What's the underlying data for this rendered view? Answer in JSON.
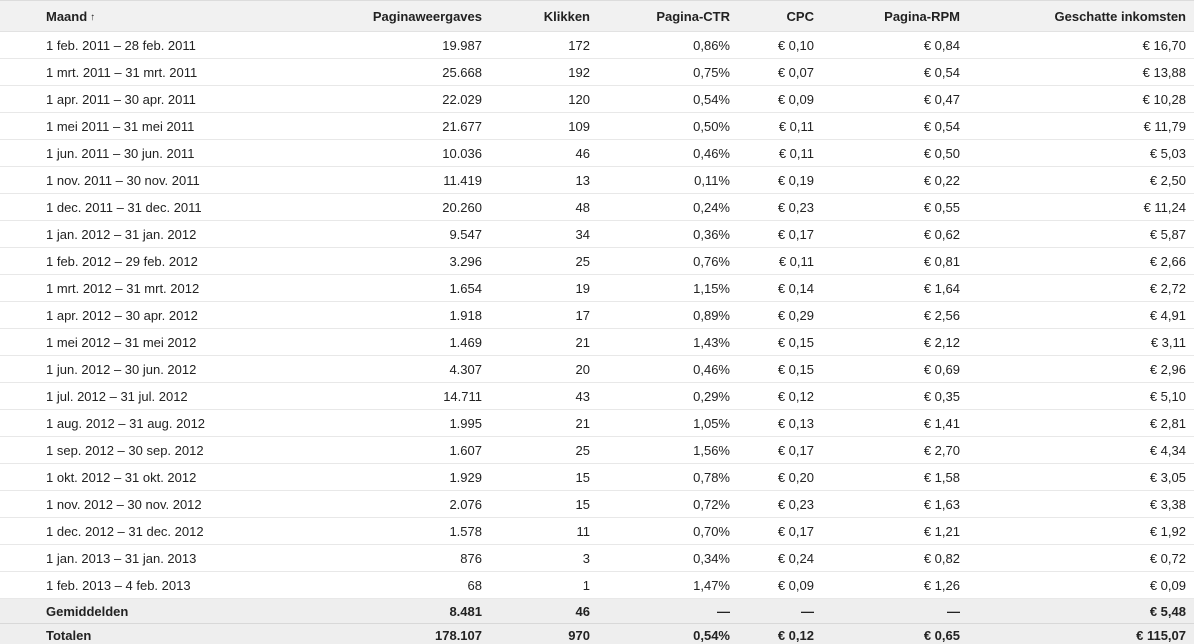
{
  "table": {
    "columns": {
      "month": "Maand",
      "sort_indicator": "↑",
      "pageviews": "Paginaweergaves",
      "clicks": "Klikken",
      "ctr": "Pagina-CTR",
      "cpc": "CPC",
      "rpm": "Pagina-RPM",
      "earnings": "Geschatte inkomsten"
    },
    "rows": [
      {
        "month": "1 feb. 2011 – 28 feb. 2011",
        "pageviews": "19.987",
        "clicks": "172",
        "ctr": "0,86%",
        "cpc": "€ 0,10",
        "rpm": "€ 0,84",
        "earnings": "€ 16,70"
      },
      {
        "month": "1 mrt. 2011 – 31 mrt. 2011",
        "pageviews": "25.668",
        "clicks": "192",
        "ctr": "0,75%",
        "cpc": "€ 0,07",
        "rpm": "€ 0,54",
        "earnings": "€ 13,88"
      },
      {
        "month": "1 apr. 2011 – 30 apr. 2011",
        "pageviews": "22.029",
        "clicks": "120",
        "ctr": "0,54%",
        "cpc": "€ 0,09",
        "rpm": "€ 0,47",
        "earnings": "€ 10,28"
      },
      {
        "month": "1 mei 2011 – 31 mei 2011",
        "pageviews": "21.677",
        "clicks": "109",
        "ctr": "0,50%",
        "cpc": "€ 0,11",
        "rpm": "€ 0,54",
        "earnings": "€ 11,79"
      },
      {
        "month": "1 jun. 2011 – 30 jun. 2011",
        "pageviews": "10.036",
        "clicks": "46",
        "ctr": "0,46%",
        "cpc": "€ 0,11",
        "rpm": "€ 0,50",
        "earnings": "€ 5,03"
      },
      {
        "month": "1 nov. 2011 – 30 nov. 2011",
        "pageviews": "11.419",
        "clicks": "13",
        "ctr": "0,11%",
        "cpc": "€ 0,19",
        "rpm": "€ 0,22",
        "earnings": "€ 2,50"
      },
      {
        "month": "1 dec. 2011 – 31 dec. 2011",
        "pageviews": "20.260",
        "clicks": "48",
        "ctr": "0,24%",
        "cpc": "€ 0,23",
        "rpm": "€ 0,55",
        "earnings": "€ 11,24"
      },
      {
        "month": "1 jan. 2012 – 31 jan. 2012",
        "pageviews": "9.547",
        "clicks": "34",
        "ctr": "0,36%",
        "cpc": "€ 0,17",
        "rpm": "€ 0,62",
        "earnings": "€ 5,87"
      },
      {
        "month": "1 feb. 2012 – 29 feb. 2012",
        "pageviews": "3.296",
        "clicks": "25",
        "ctr": "0,76%",
        "cpc": "€ 0,11",
        "rpm": "€ 0,81",
        "earnings": "€ 2,66"
      },
      {
        "month": "1 mrt. 2012 – 31 mrt. 2012",
        "pageviews": "1.654",
        "clicks": "19",
        "ctr": "1,15%",
        "cpc": "€ 0,14",
        "rpm": "€ 1,64",
        "earnings": "€ 2,72"
      },
      {
        "month": "1 apr. 2012 – 30 apr. 2012",
        "pageviews": "1.918",
        "clicks": "17",
        "ctr": "0,89%",
        "cpc": "€ 0,29",
        "rpm": "€ 2,56",
        "earnings": "€ 4,91"
      },
      {
        "month": "1 mei 2012 – 31 mei 2012",
        "pageviews": "1.469",
        "clicks": "21",
        "ctr": "1,43%",
        "cpc": "€ 0,15",
        "rpm": "€ 2,12",
        "earnings": "€ 3,11"
      },
      {
        "month": "1 jun. 2012 – 30 jun. 2012",
        "pageviews": "4.307",
        "clicks": "20",
        "ctr": "0,46%",
        "cpc": "€ 0,15",
        "rpm": "€ 0,69",
        "earnings": "€ 2,96"
      },
      {
        "month": "1 jul. 2012 – 31 jul. 2012",
        "pageviews": "14.711",
        "clicks": "43",
        "ctr": "0,29%",
        "cpc": "€ 0,12",
        "rpm": "€ 0,35",
        "earnings": "€ 5,10"
      },
      {
        "month": "1 aug. 2012 – 31 aug. 2012",
        "pageviews": "1.995",
        "clicks": "21",
        "ctr": "1,05%",
        "cpc": "€ 0,13",
        "rpm": "€ 1,41",
        "earnings": "€ 2,81"
      },
      {
        "month": "1 sep. 2012 – 30 sep. 2012",
        "pageviews": "1.607",
        "clicks": "25",
        "ctr": "1,56%",
        "cpc": "€ 0,17",
        "rpm": "€ 2,70",
        "earnings": "€ 4,34"
      },
      {
        "month": "1 okt. 2012 – 31 okt. 2012",
        "pageviews": "1.929",
        "clicks": "15",
        "ctr": "0,78%",
        "cpc": "€ 0,20",
        "rpm": "€ 1,58",
        "earnings": "€ 3,05"
      },
      {
        "month": "1 nov. 2012 – 30 nov. 2012",
        "pageviews": "2.076",
        "clicks": "15",
        "ctr": "0,72%",
        "cpc": "€ 0,23",
        "rpm": "€ 1,63",
        "earnings": "€ 3,38"
      },
      {
        "month": "1 dec. 2012 – 31 dec. 2012",
        "pageviews": "1.578",
        "clicks": "11",
        "ctr": "0,70%",
        "cpc": "€ 0,17",
        "rpm": "€ 1,21",
        "earnings": "€ 1,92"
      },
      {
        "month": "1 jan. 2013 – 31 jan. 2013",
        "pageviews": "876",
        "clicks": "3",
        "ctr": "0,34%",
        "cpc": "€ 0,24",
        "rpm": "€ 0,82",
        "earnings": "€ 0,72"
      },
      {
        "month": "1 feb. 2013 – 4 feb. 2013",
        "pageviews": "68",
        "clicks": "1",
        "ctr": "1,47%",
        "cpc": "€ 0,09",
        "rpm": "€ 1,26",
        "earnings": "€ 0,09"
      }
    ],
    "averages": {
      "label": "Gemiddelden",
      "pageviews": "8.481",
      "clicks": "46",
      "ctr": "—",
      "cpc": "—",
      "rpm": "—",
      "earnings": "€ 5,48"
    },
    "totals": {
      "label": "Totalen",
      "pageviews": "178.107",
      "clicks": "970",
      "ctr": "0,54%",
      "cpc": "€ 0,12",
      "rpm": "€ 0,65",
      "earnings": "€ 115,07"
    }
  }
}
